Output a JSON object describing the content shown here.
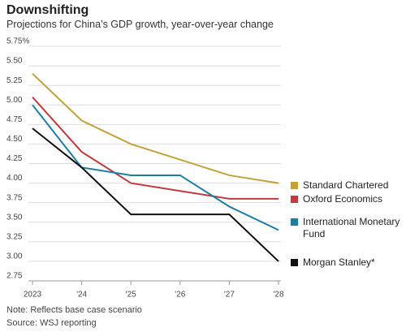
{
  "chart_data": {
    "type": "line",
    "title": "Downshifting",
    "subtitle": "Projections for China’s GDP growth, year-over-year change",
    "categories": [
      "2023",
      "'24",
      "'25",
      "'26",
      "'27",
      "'28"
    ],
    "series": [
      {
        "name": "Standard Chartered",
        "color": "#c4a23a",
        "values": [
          5.4,
          4.8,
          4.5,
          4.3,
          4.1,
          4.0
        ]
      },
      {
        "name": "Oxford Economics",
        "color": "#c23a3e",
        "values": [
          5.1,
          4.4,
          4.0,
          3.9,
          3.8,
          3.8
        ]
      },
      {
        "name": "International Monetary Fund",
        "color": "#1b7ea6",
        "values": [
          5.0,
          4.2,
          4.1,
          4.1,
          3.7,
          3.4
        ]
      },
      {
        "name": "Morgan Stanley*",
        "color": "#111111",
        "values": [
          4.7,
          4.2,
          3.6,
          3.6,
          3.6,
          3.0
        ]
      }
    ],
    "ylim": [
      2.75,
      5.75
    ],
    "yticks": [
      {
        "value": 2.75,
        "label": "2.75"
      },
      {
        "value": 3.0,
        "label": "3.00"
      },
      {
        "value": 3.25,
        "label": "3.25"
      },
      {
        "value": 3.5,
        "label": "3.50"
      },
      {
        "value": 3.75,
        "label": "3.75"
      },
      {
        "value": 4.0,
        "label": "4.00"
      },
      {
        "value": 4.25,
        "label": "4.25"
      },
      {
        "value": 4.5,
        "label": "4.50"
      },
      {
        "value": 4.75,
        "label": "4.75"
      },
      {
        "value": 5.0,
        "label": "5.00"
      },
      {
        "value": 5.25,
        "label": "5.25"
      },
      {
        "value": 5.5,
        "label": "5.50"
      },
      {
        "value": 5.75,
        "label": "5.75%"
      }
    ],
    "grid": true,
    "note": "Note: Reflects base case scenario",
    "source": "Source: WSJ reporting"
  }
}
